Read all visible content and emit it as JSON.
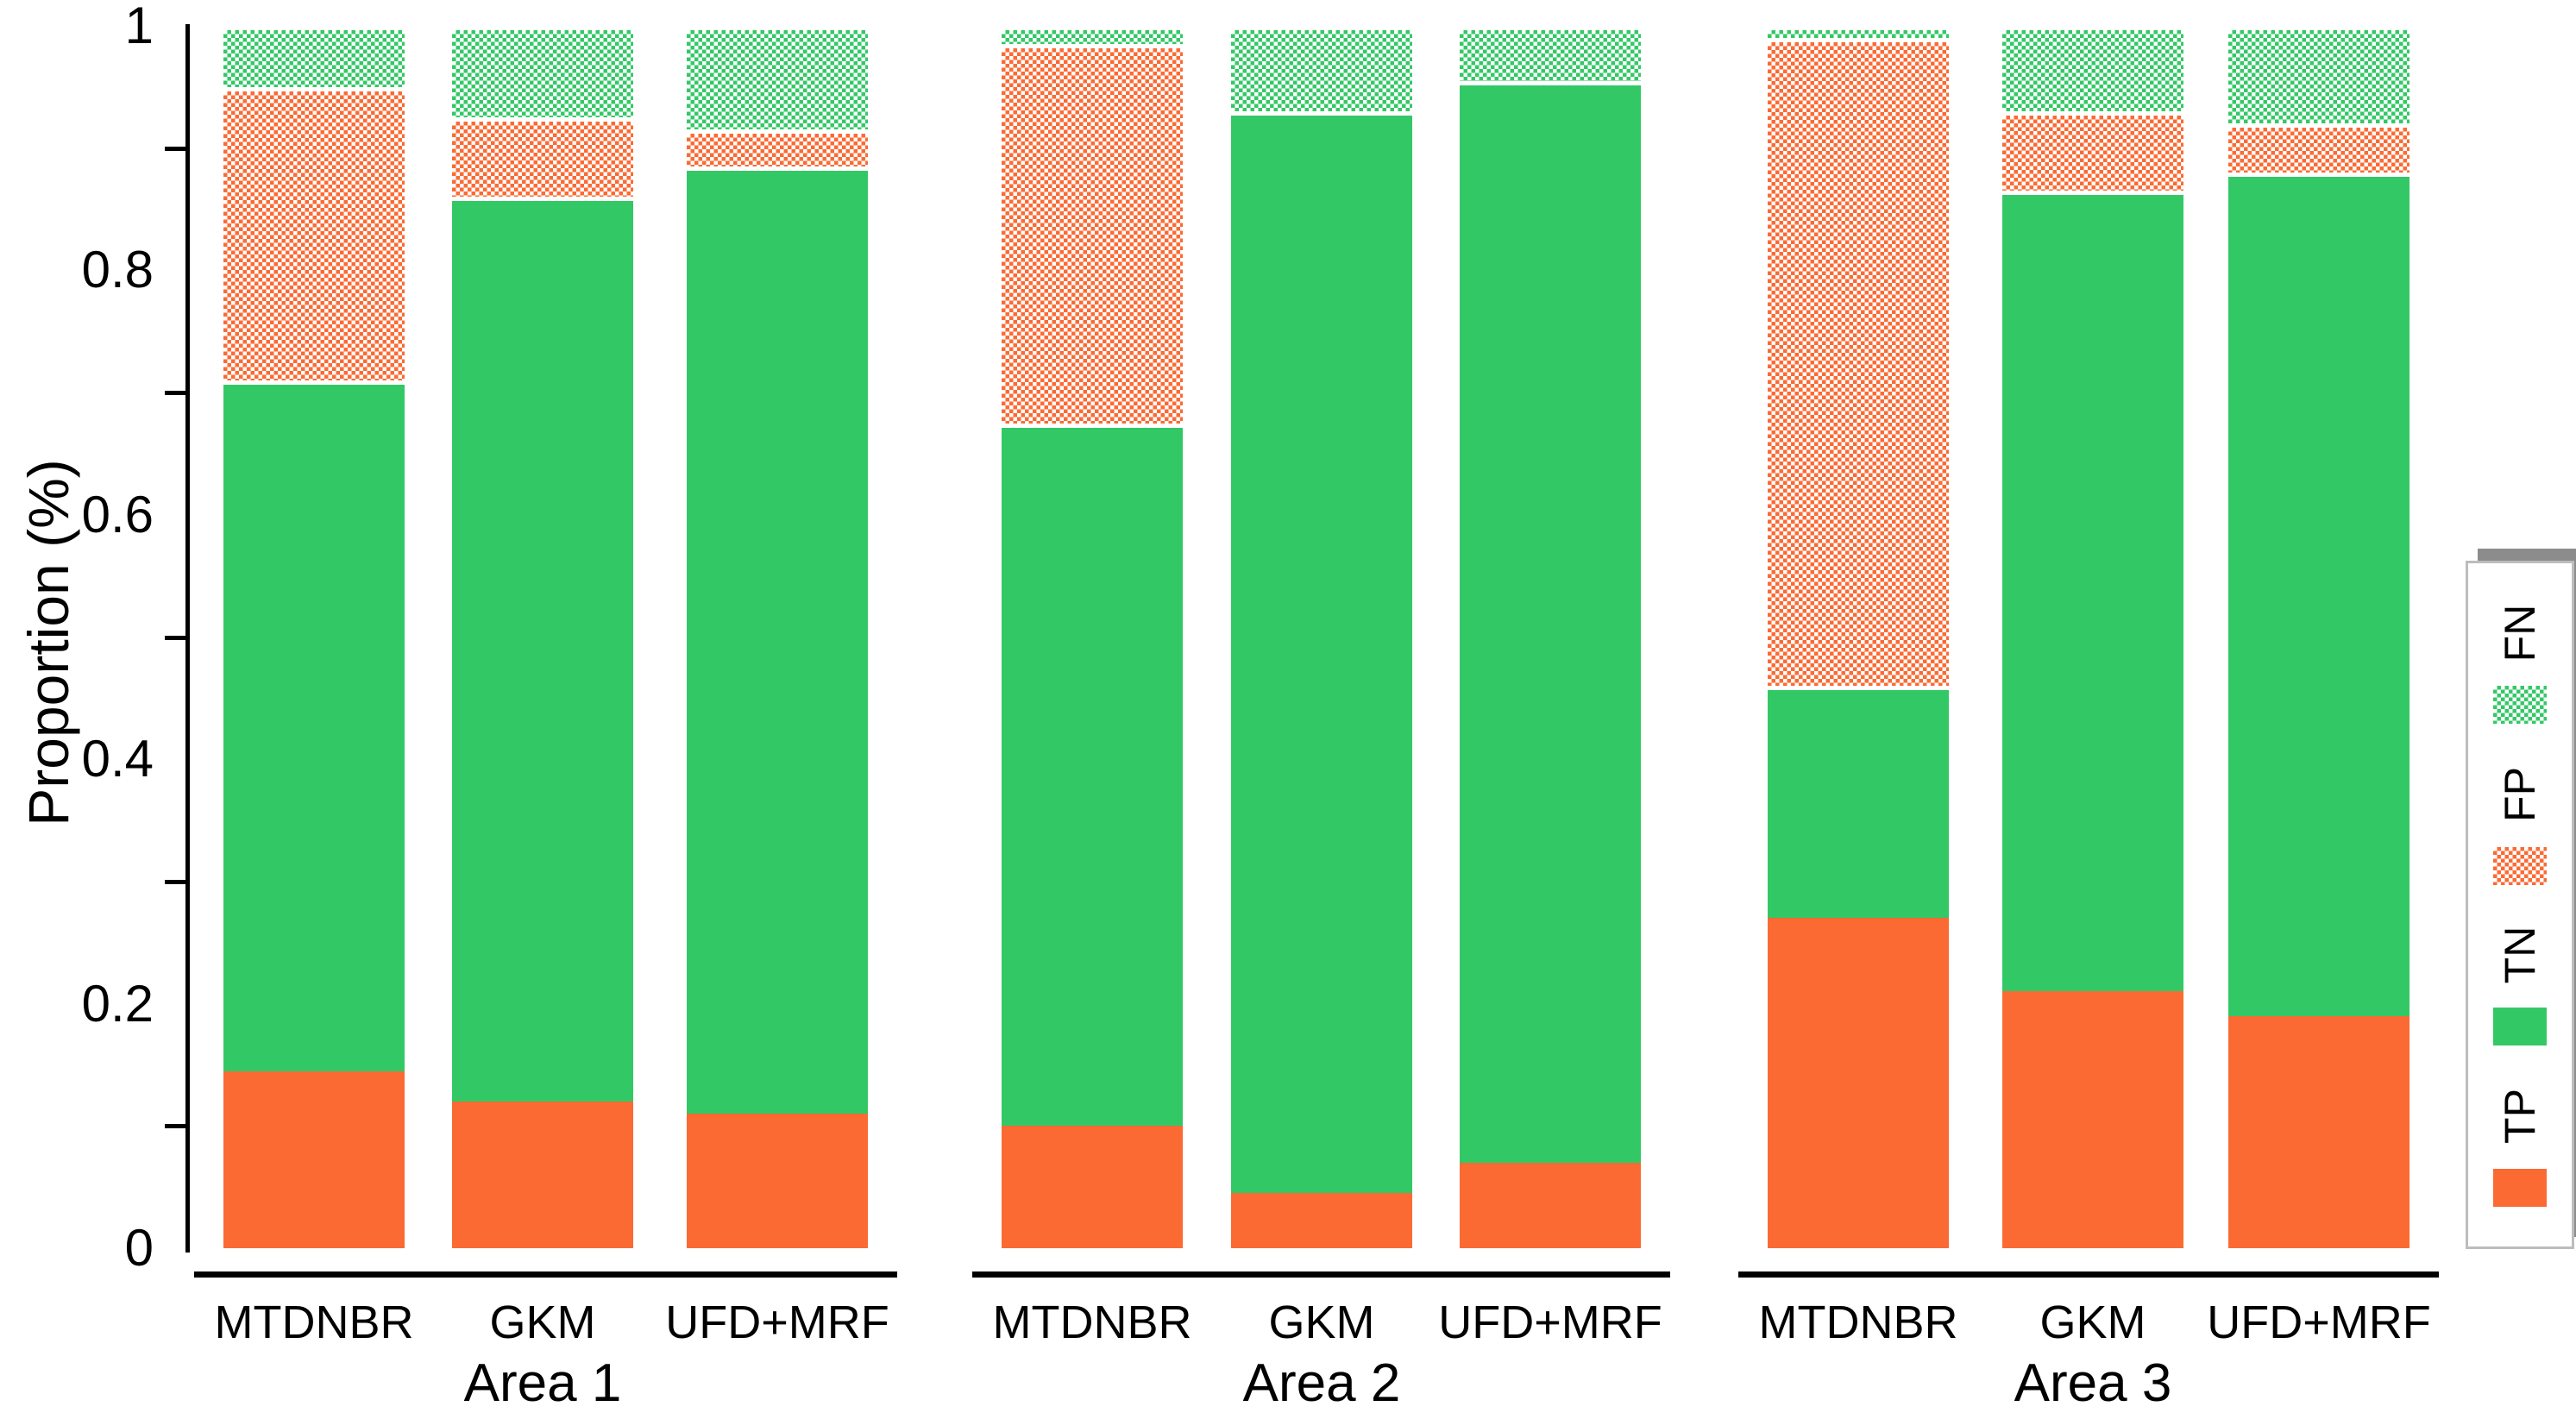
{
  "figure": {
    "ylabel": "Proportion (%)",
    "y_axis": {
      "tick_labels": [
        "0",
        "0.2",
        "0.4",
        "0.6",
        "0.8",
        "1"
      ],
      "tick_label_values": [
        0,
        0.2,
        0.4,
        0.6,
        0.8,
        1
      ],
      "minor_tick_values": [
        0.1,
        0.3,
        0.5,
        0.7,
        0.9
      ],
      "range": [
        0,
        1
      ]
    },
    "colors": {
      "tp_solid_orange": "#FB6A33",
      "tn_solid_green": "#33C866",
      "fp_hatch_orange_on_white": "#FB6A33",
      "fn_hatch_green_on_white": "#33C866",
      "axis_black": "#000000",
      "legend_border_gray": "#bdbdbd",
      "legend_shadow_gray": "#8c8c8c"
    }
  },
  "legend": {
    "items": [
      {
        "label": "FN",
        "swatch": "hatch-green"
      },
      {
        "label": "FP",
        "swatch": "hatch-orange"
      },
      {
        "label": "TN",
        "swatch": "solid-green"
      },
      {
        "label": "TP",
        "swatch": "solid-orange"
      }
    ]
  },
  "chart_data": {
    "type": "bar",
    "stacked": true,
    "title": "",
    "xlabel": "",
    "ylabel": "Proportion (%)",
    "ylim": [
      0,
      1
    ],
    "grid": false,
    "legend_position": "right-outside-rotated",
    "stack_order_bottom_to_top": [
      "TP",
      "TN",
      "FP",
      "FN"
    ],
    "groups": [
      "Area 1",
      "Area 2",
      "Area 3"
    ],
    "categories": [
      "MTDNBR",
      "GKM",
      "UFD+MRF"
    ],
    "series": [
      {
        "name": "TP",
        "style": "solid-orange",
        "values": [
          0.145,
          0.12,
          0.11,
          0.1,
          0.045,
          0.07,
          0.27,
          0.21,
          0.19
        ]
      },
      {
        "name": "TN",
        "style": "solid-green",
        "values": [
          0.565,
          0.74,
          0.775,
          0.575,
          0.885,
          0.885,
          0.19,
          0.655,
          0.69
        ]
      },
      {
        "name": "FP",
        "style": "hatch-orange",
        "values": [
          0.24,
          0.065,
          0.03,
          0.31,
          0,
          0,
          0.53,
          0.065,
          0.04
        ]
      },
      {
        "name": "FN",
        "style": "hatch-green",
        "values": [
          0.05,
          0.075,
          0.085,
          0.015,
          0.07,
          0.045,
          0.01,
          0.07,
          0.08
        ]
      }
    ],
    "bar_labels_flat": [
      "MTDNBR",
      "GKM",
      "UFD+MRF",
      "MTDNBR",
      "GKM",
      "UFD+MRF",
      "MTDNBR",
      "GKM",
      "UFD+MRF"
    ]
  }
}
